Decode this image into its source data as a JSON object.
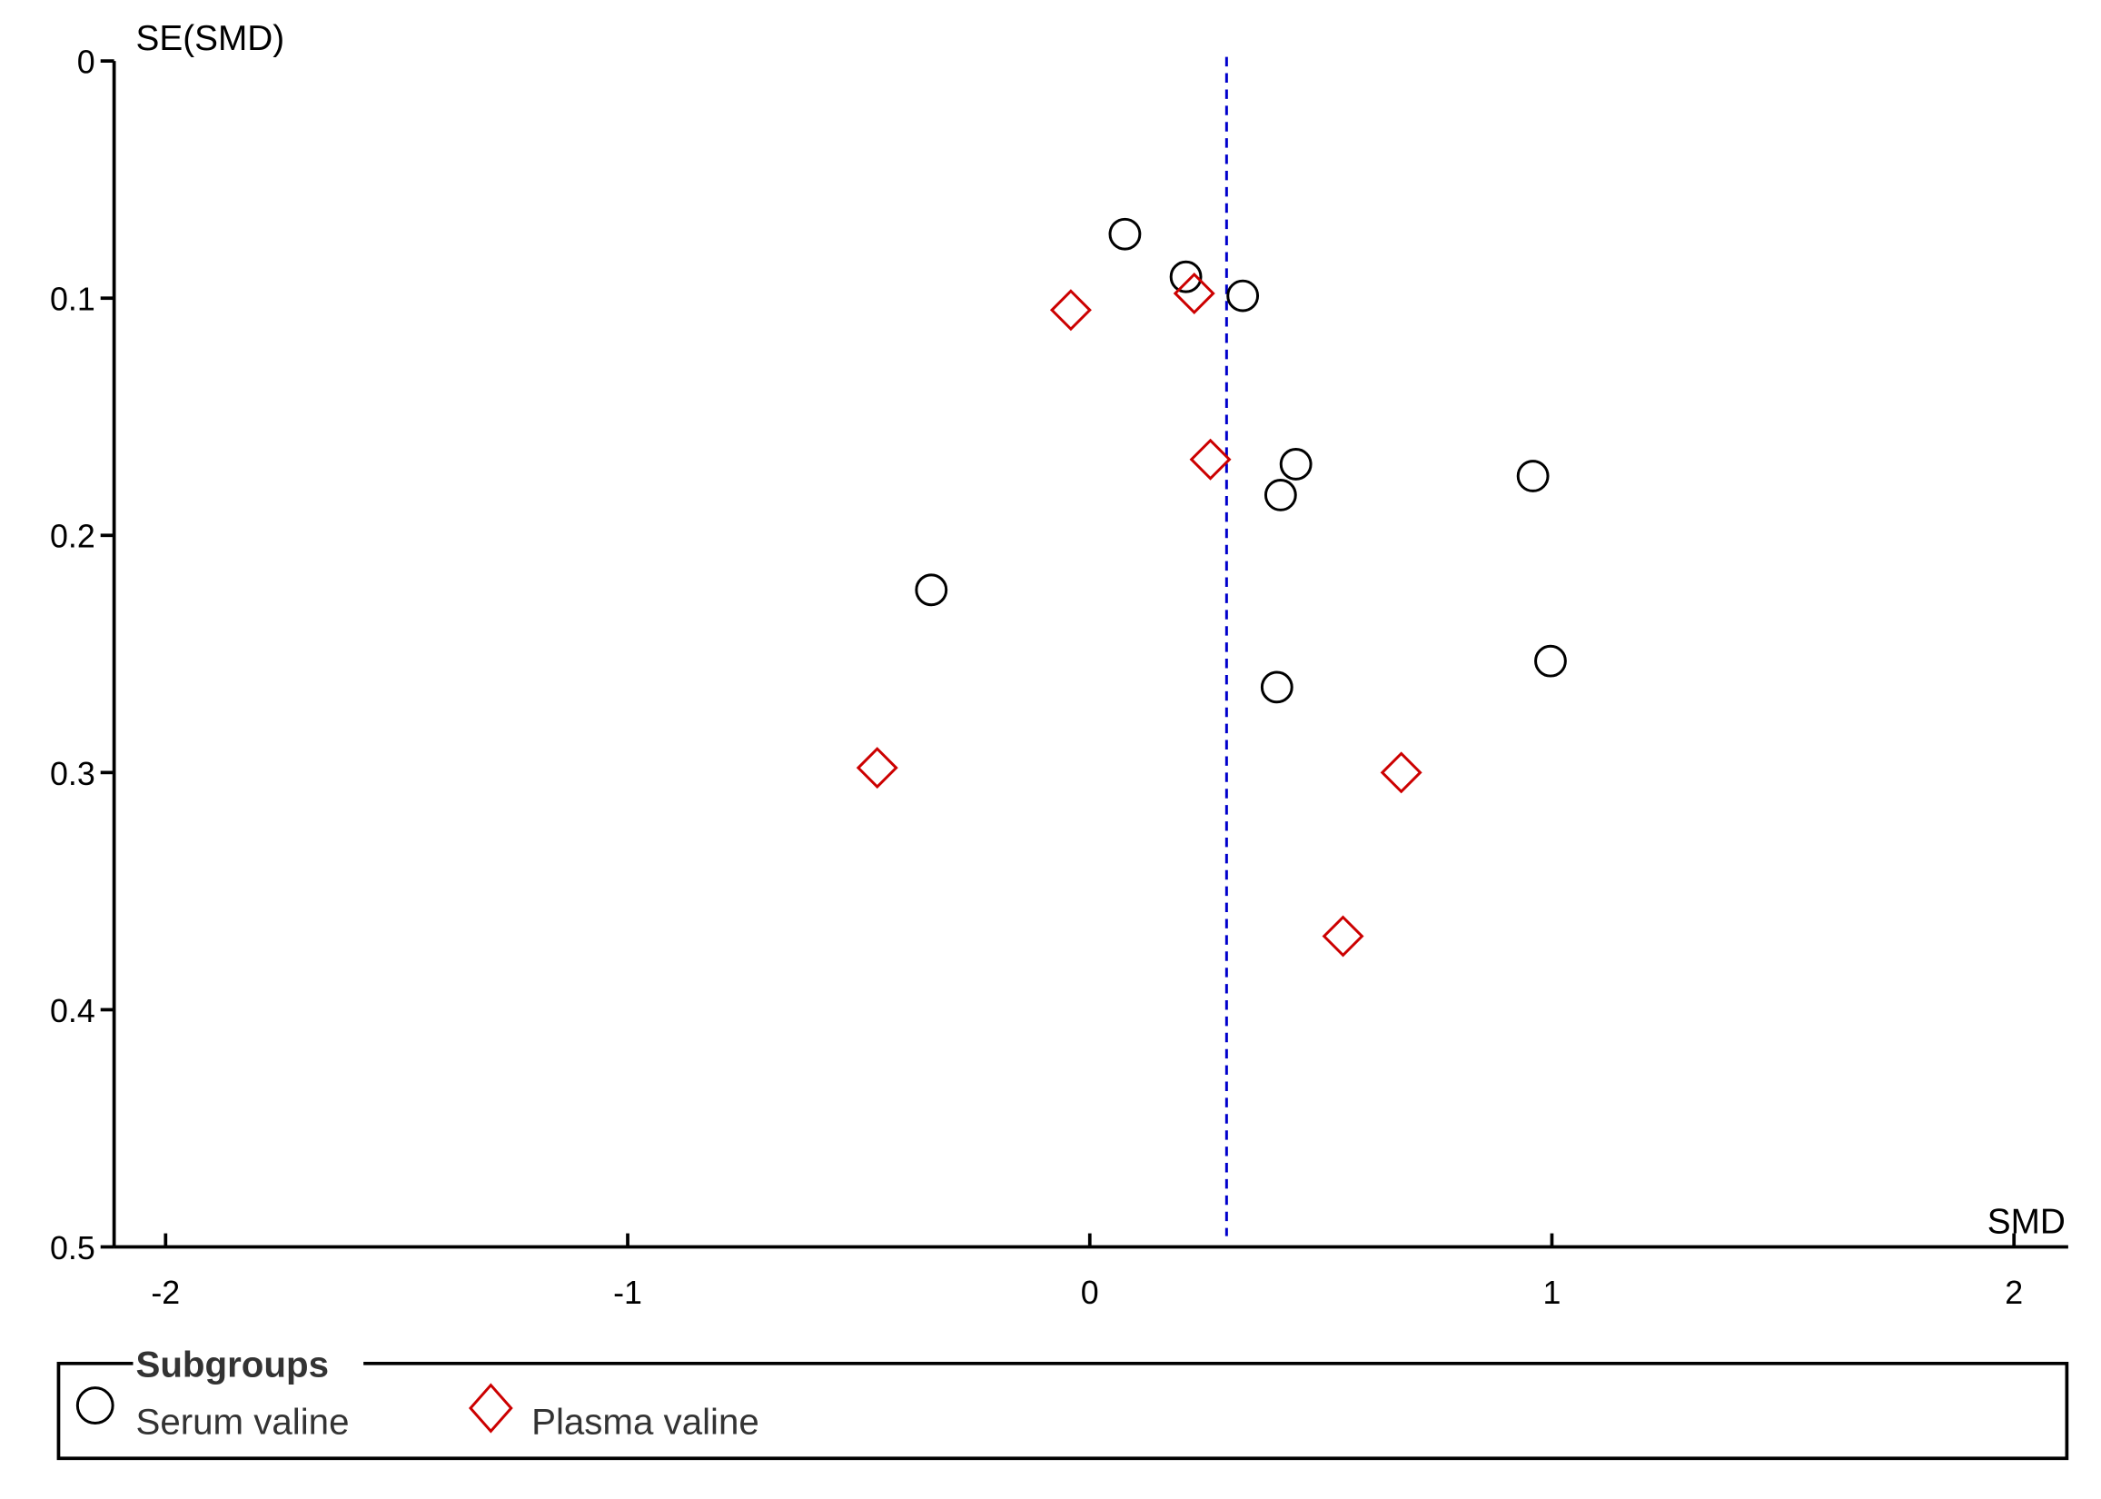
{
  "chart_data": {
    "type": "scatter",
    "title": "",
    "xlabel": "SMD",
    "ylabel": "SE(SMD)",
    "xlim": [
      -2.1,
      2.1
    ],
    "ylim": [
      0,
      0.5
    ],
    "y_inverted": true,
    "xticks": [
      "-2",
      "-1",
      "0",
      "1",
      "2"
    ],
    "yticks": [
      "0",
      "0.1",
      "0.2",
      "0.3",
      "0.4",
      "0.5"
    ],
    "reference_line": {
      "x": 0.296,
      "style": "dashed",
      "color": "#0000cc"
    },
    "legend": {
      "title": "Subgroups",
      "placement": "bottom"
    },
    "series": [
      {
        "name": "Serum valine",
        "marker": "circle",
        "color": "#000000",
        "points": [
          [
            0.076,
            0.073
          ],
          [
            0.208,
            0.091
          ],
          [
            0.331,
            0.099
          ],
          [
            0.446,
            0.17
          ],
          [
            0.413,
            0.183
          ],
          [
            0.959,
            0.175
          ],
          [
            -0.343,
            0.223
          ],
          [
            0.997,
            0.253
          ],
          [
            0.405,
            0.264
          ]
        ]
      },
      {
        "name": "Plasma valine",
        "marker": "diamond",
        "color": "#cc0000",
        "points": [
          [
            -0.041,
            0.105
          ],
          [
            0.226,
            0.098
          ],
          [
            0.261,
            0.168
          ],
          [
            -0.46,
            0.298
          ],
          [
            0.674,
            0.3
          ],
          [
            0.548,
            0.369
          ]
        ]
      }
    ]
  }
}
